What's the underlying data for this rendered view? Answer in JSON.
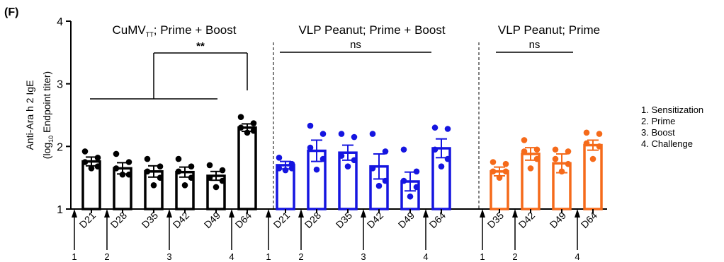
{
  "chart_data": {
    "type": "bar",
    "panel_label": "(F)",
    "ylabel_main": "Anti-Ara h 2 IgE",
    "ylabel_sub_pre": "(log",
    "ylabel_sub_subscript": "10",
    "ylabel_sub_post": " Endpoint titer)",
    "ylim": [
      1,
      4
    ],
    "yticks": [
      "1",
      "2",
      "3",
      "4"
    ],
    "groups": [
      {
        "title_pre": "CuMV",
        "title_subscript": "TT",
        "title_post": "; Prime + Boost",
        "color": "#000000",
        "fill": "#ffffff",
        "marker_fill": "#000000",
        "categories": [
          "D21",
          "D28",
          "D35",
          "D42",
          "D49",
          "D64"
        ],
        "values": [
          1.76,
          1.65,
          1.6,
          1.59,
          1.53,
          2.3
        ],
        "errors": [
          0.07,
          0.09,
          0.09,
          0.08,
          0.07,
          0.06
        ],
        "points": [
          [
            1.92,
            1.82,
            1.75,
            1.68,
            1.65
          ],
          [
            1.88,
            1.75,
            1.65,
            1.55,
            1.55
          ],
          [
            1.8,
            1.68,
            1.6,
            1.5,
            1.38
          ],
          [
            1.8,
            1.68,
            1.6,
            1.5,
            1.38
          ],
          [
            1.7,
            1.62,
            1.5,
            1.45,
            1.35
          ],
          [
            2.47,
            2.37,
            2.3,
            2.25,
            2.22
          ]
        ],
        "arrows": [
          {
            "label": "1",
            "before": 0
          },
          {
            "label": "2",
            "before": 1
          },
          {
            "label": "3",
            "before": 3
          },
          {
            "label": "4",
            "before": 5
          }
        ],
        "comparison": {
          "label": "**",
          "type": "bracket",
          "from": 0,
          "to": 5
        }
      },
      {
        "title_pre": "VLP Peanut; Prime + Boost",
        "title_subscript": "",
        "title_post": "",
        "color": "#1515e0",
        "fill": "#ffffff",
        "marker_fill": "#1515e0",
        "categories": [
          "D21",
          "D28",
          "D35",
          "D42",
          "D49",
          "D64"
        ],
        "values": [
          1.7,
          1.93,
          1.9,
          1.68,
          1.44,
          1.97
        ],
        "errors": [
          0.06,
          0.17,
          0.12,
          0.2,
          0.15,
          0.15
        ],
        "points": [
          [
            1.82,
            1.72,
            1.65,
            1.65,
            1.62
          ],
          [
            2.33,
            2.2,
            1.98,
            1.8,
            1.63
          ],
          [
            2.2,
            2.15,
            1.85,
            1.78,
            1.68
          ],
          [
            2.2,
            1.92,
            1.65,
            1.45,
            1.37
          ],
          [
            1.95,
            1.6,
            1.45,
            1.35,
            1.2
          ],
          [
            2.3,
            2.28,
            1.95,
            1.8,
            1.68
          ]
        ],
        "arrows": [
          {
            "label": "1",
            "before": 0
          },
          {
            "label": "2",
            "before": 1
          },
          {
            "label": "3",
            "before": 3
          },
          {
            "label": "4",
            "before": 5
          }
        ],
        "comparison": {
          "label": "ns",
          "type": "line",
          "from": 0,
          "to": 5
        }
      },
      {
        "title_pre": "VLP Peanut; Prime",
        "title_subscript": "",
        "title_post": "",
        "color": "#f56a1a",
        "fill": "#ffffff",
        "marker_fill": "#f56a1a",
        "categories": [
          "D35",
          "D42",
          "D49",
          "D64"
        ],
        "values": [
          1.6,
          1.88,
          1.73,
          2.02
        ],
        "errors": [
          0.07,
          0.1,
          0.15,
          0.08
        ],
        "points": [
          [
            1.75,
            1.72,
            1.6,
            1.6,
            1.5
          ],
          [
            2.1,
            1.95,
            1.92,
            1.8,
            1.65
          ],
          [
            1.95,
            1.92,
            1.8,
            1.72,
            1.6
          ],
          [
            2.22,
            2.2,
            2.05,
            2.0,
            1.8
          ]
        ],
        "arrows": [
          {
            "label": "1",
            "before": 0
          },
          {
            "label": "2",
            "before": 1
          },
          {
            "label": "4",
            "before": 3
          }
        ],
        "comparison": {
          "label": "ns",
          "type": "line",
          "from": 0,
          "to": 3
        }
      }
    ],
    "legend": {
      "placement": "right",
      "items": [
        "1. Sensitization",
        "2. Prime",
        "3. Boost",
        "4. Challenge"
      ]
    }
  }
}
